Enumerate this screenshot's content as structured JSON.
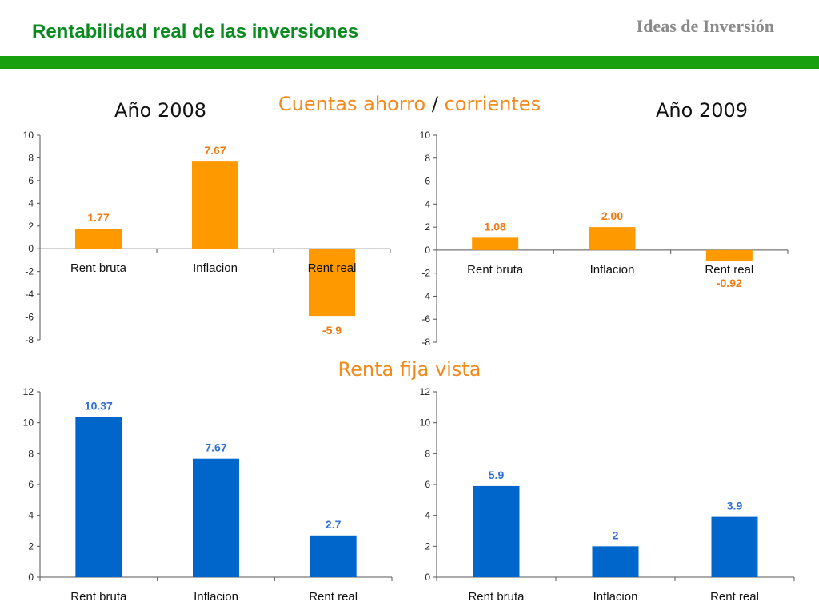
{
  "header": {
    "title": "Rentabilidad real de las inversiones",
    "brand": "Ideas de Inversión"
  },
  "sections": {
    "savings_part1": "Cuentas ahorro",
    "savings_sep": "/",
    "savings_part2": "corrientes",
    "fixed_income": "Renta fija vista"
  },
  "years": {
    "left": "Año 2008",
    "right": "Año 2009"
  },
  "colors": {
    "orange": "#ff9900",
    "orange_label": "#f07a10",
    "blue": "#0066cc",
    "blue_label": "#2f6fd6"
  },
  "chart_data": [
    {
      "type": "bar",
      "categories": [
        "Rent bruta",
        "Inflacion",
        "Rent real"
      ],
      "values": [
        1.77,
        7.67,
        -5.9
      ],
      "labels": [
        "1.77",
        "7.67",
        "-5.9"
      ],
      "ylim": [
        -8,
        10
      ],
      "yticks": [
        "10",
        "8",
        "6",
        "4",
        "2",
        "0",
        "-2",
        "-4",
        "-6",
        "-8"
      ],
      "color": "#ff9900",
      "label_color": "#f07a10"
    },
    {
      "type": "bar",
      "categories": [
        "Rent bruta",
        "Inflacion",
        "Rent real"
      ],
      "values": [
        1.08,
        2.0,
        -0.92
      ],
      "labels": [
        "1.08",
        "2.00",
        "-0.92"
      ],
      "ylim": [
        -8,
        10
      ],
      "yticks": [
        "10",
        "8",
        "6",
        "4",
        "2",
        "0",
        "-2",
        "-4",
        "-6",
        "-8"
      ],
      "color": "#ff9900",
      "label_color": "#f07a10"
    },
    {
      "type": "bar",
      "categories": [
        "Rent bruta",
        "Inflacion",
        "Rent real"
      ],
      "values": [
        10.37,
        7.67,
        2.7
      ],
      "labels": [
        "10.37",
        "7.67",
        "2.7"
      ],
      "ylim": [
        0,
        12
      ],
      "yticks": [
        "12",
        "10",
        "8",
        "6",
        "4",
        "2",
        "0"
      ],
      "color": "#0066cc",
      "label_color": "#2f6fd6"
    },
    {
      "type": "bar",
      "categories": [
        "Rent bruta",
        "Inflacion",
        "Rent real"
      ],
      "values": [
        5.9,
        2.0,
        3.9
      ],
      "labels": [
        "5.9",
        "2",
        "3.9"
      ],
      "ylim": [
        0,
        12
      ],
      "yticks": [
        "12",
        "10",
        "8",
        "6",
        "4",
        "2",
        "0"
      ],
      "color": "#0066cc",
      "label_color": "#2f6fd6"
    }
  ]
}
